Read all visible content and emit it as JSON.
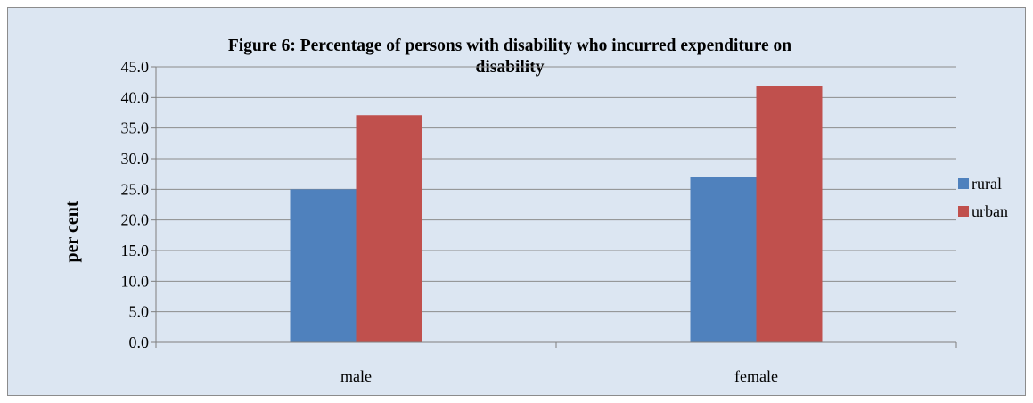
{
  "chart_data": {
    "type": "bar",
    "title": "Figure 6: Percentage of persons with disability who incurred expenditure on disability",
    "title_lines": [
      "Figure 6: Percentage of persons with disability who incurred expenditure on",
      "disability"
    ],
    "ylabel": "per cent",
    "xlabel": "",
    "categories": [
      "male",
      "female"
    ],
    "series": [
      {
        "name": "rural",
        "values": [
          25.0,
          27.0
        ]
      },
      {
        "name": "urban",
        "values": [
          37.1,
          41.8
        ]
      }
    ],
    "ylim": [
      0,
      45
    ],
    "yticks": [
      "0.0",
      "5.0",
      "10.0",
      "15.0",
      "20.0",
      "25.0",
      "30.0",
      "35.0",
      "40.0",
      "45.0"
    ],
    "grid": true,
    "legend_position": "right"
  },
  "colors": {
    "rural": "#4f81bd",
    "urban": "#c0504d",
    "plot_background": "#dce6f2",
    "gridline": "#8c8c8c"
  }
}
